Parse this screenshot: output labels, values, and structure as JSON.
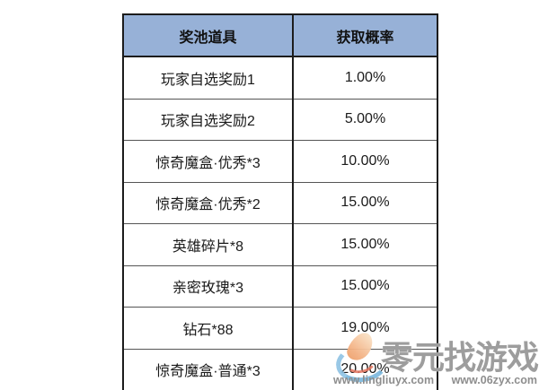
{
  "table": {
    "headers": [
      "奖池道具",
      "获取概率"
    ],
    "rows": [
      {
        "item": "玩家自选奖励1",
        "prob": "1.00%"
      },
      {
        "item": "玩家自选奖励2",
        "prob": "5.00%"
      },
      {
        "item": "惊奇魔盒·优秀*3",
        "prob": "10.00%"
      },
      {
        "item": "惊奇魔盒·优秀*2",
        "prob": "15.00%"
      },
      {
        "item": "英雄碎片*8",
        "prob": "15.00%"
      },
      {
        "item": "亲密玫瑰*3",
        "prob": "15.00%"
      },
      {
        "item": "钻石*88",
        "prob": "19.00%"
      },
      {
        "item": "惊奇魔盒·普通*3",
        "prob": "20.00%"
      }
    ]
  },
  "watermark": {
    "brand": "零元找游戏",
    "url_left": "www.lingliuyx.com",
    "url_right": "www.06zyx.com"
  },
  "colors": {
    "header_bg": "#97b1d7",
    "outer_border": "#1c1c1c",
    "row_divider": "#555555",
    "watermark_text": "#9d9d9d",
    "watermark_url": "#8e8e8e",
    "logo_orange": "#f3b183",
    "logo_blue": "#79b7de"
  }
}
